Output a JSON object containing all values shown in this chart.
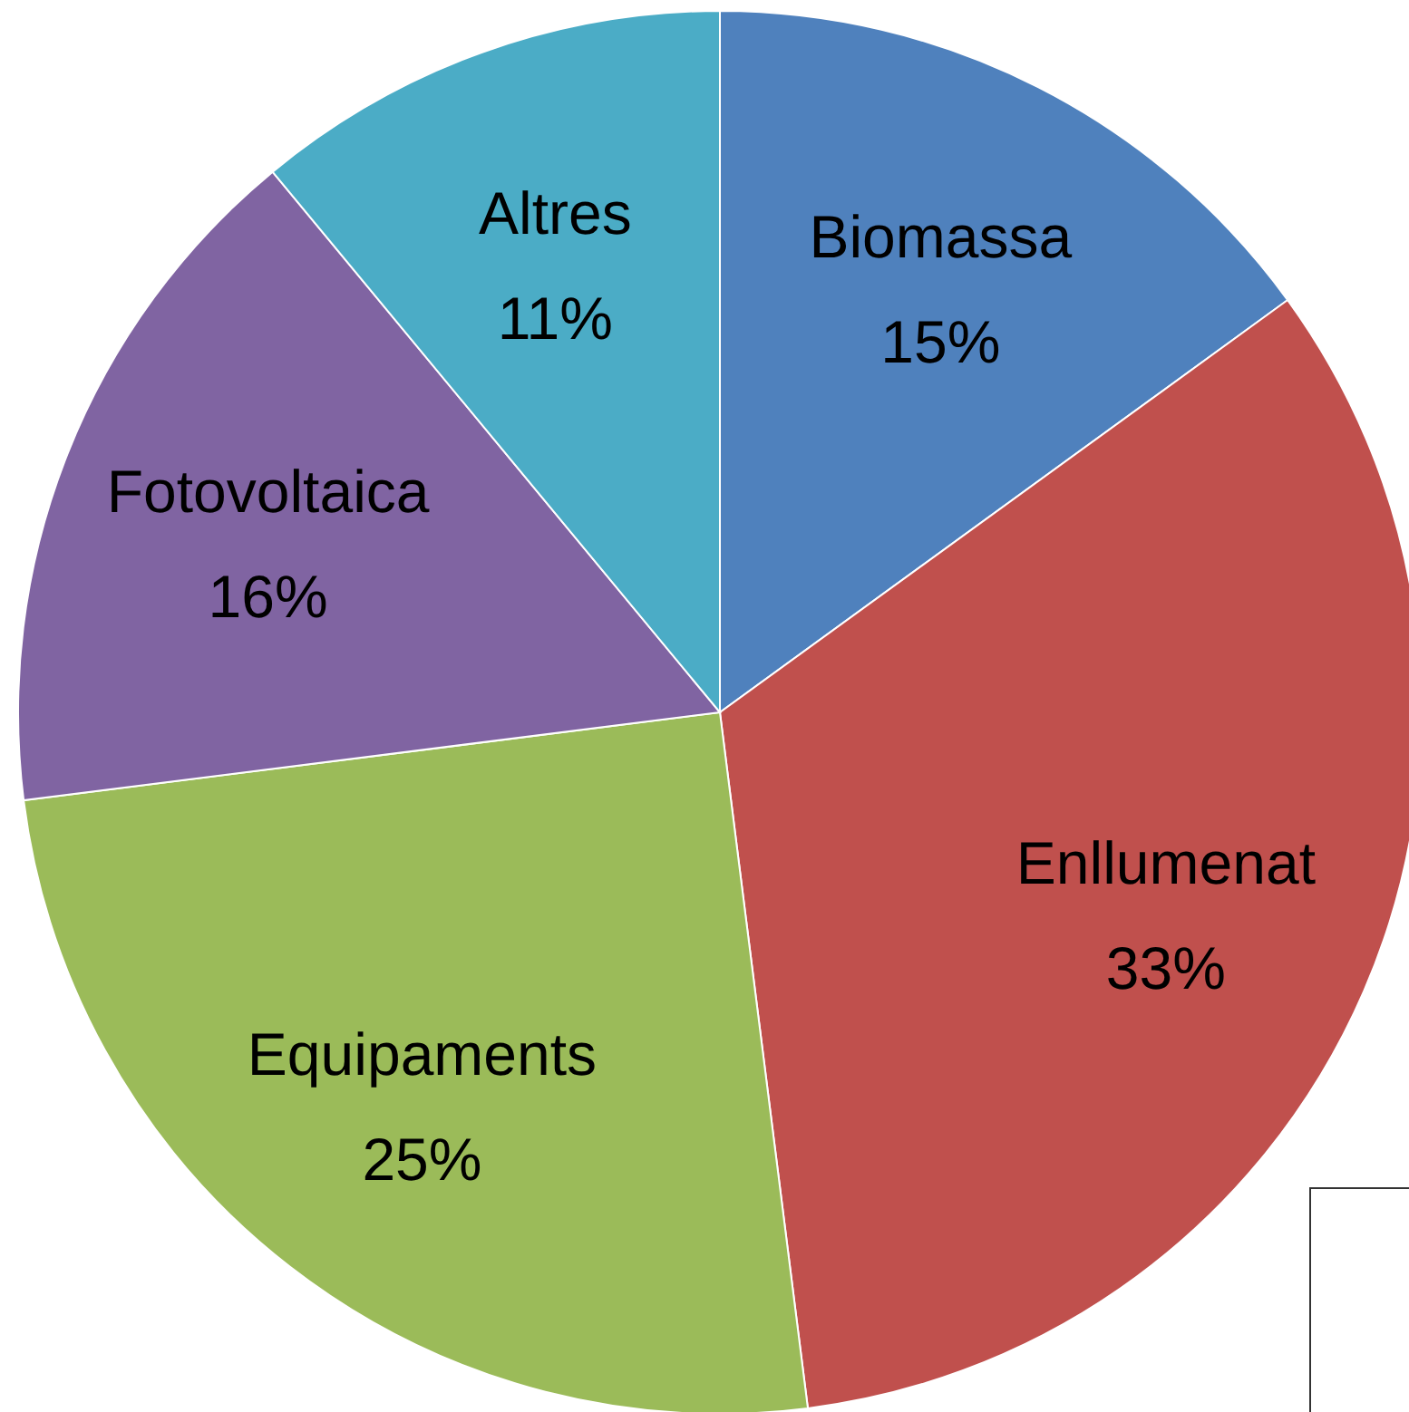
{
  "chart_data": {
    "type": "pie",
    "categories": [
      "Biomassa",
      "Enllumenat",
      "Equipaments",
      "Fotovoltaica",
      "Altres"
    ],
    "values": [
      15,
      33,
      25,
      16,
      11
    ],
    "value_labels": [
      "15%",
      "33%",
      "25%",
      "16%",
      "11%"
    ],
    "colors": [
      "#4f81bd",
      "#c0504d",
      "#9bbb59",
      "#8064a2",
      "#4bacc6"
    ],
    "legend": false
  }
}
